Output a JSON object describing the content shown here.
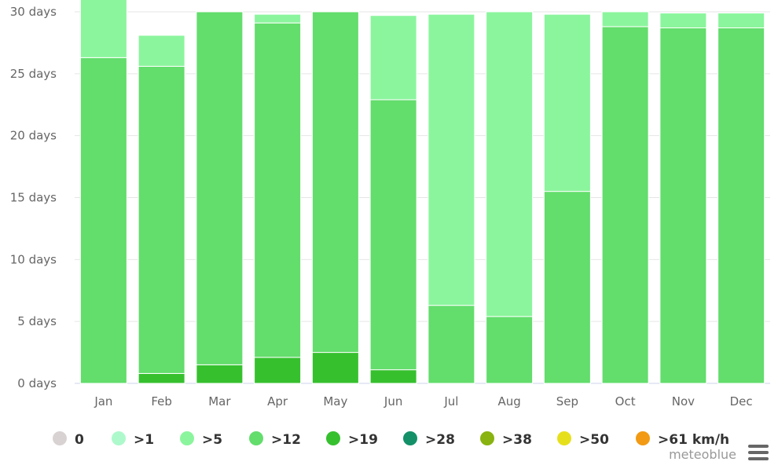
{
  "chart_data": {
    "type": "bar",
    "stacked": true,
    "categories": [
      "Jan",
      "Feb",
      "Mar",
      "Apr",
      "May",
      "Jun",
      "Jul",
      "Aug",
      "Sep",
      "Oct",
      "Nov",
      "Dec"
    ],
    "y_ticks": [
      "0 days",
      "5 days",
      "10 days",
      "15 days",
      "20 days",
      "25 days",
      "30 days"
    ],
    "ylim": [
      0,
      30
    ],
    "grid": true,
    "legend_position": "bottom",
    "series": [
      {
        "name": "0",
        "color": "#d9d2d2",
        "values": [
          0,
          0,
          0,
          0,
          0,
          0,
          0,
          0,
          0,
          0,
          0,
          0
        ]
      },
      {
        "name": ">1",
        "color": "#aef9cc",
        "values": [
          0,
          0,
          0,
          0,
          0,
          0,
          0,
          0,
          0,
          0,
          0,
          0
        ]
      },
      {
        "name": ">5",
        "color": "#8bf59d",
        "values": [
          4.7,
          2.5,
          0,
          0.7,
          0,
          6.8,
          23.5,
          24.6,
          14.3,
          1.2,
          1.2,
          1.2
        ]
      },
      {
        "name": ">12",
        "color": "#63dd6c",
        "values": [
          26.3,
          24.8,
          28.5,
          27.0,
          27.5,
          21.8,
          6.3,
          5.4,
          15.5,
          28.8,
          28.7,
          28.7
        ]
      },
      {
        "name": ">19",
        "color": "#36c02e",
        "values": [
          0,
          0.8,
          1.5,
          2.1,
          2.5,
          1.1,
          0,
          0,
          0,
          0,
          0,
          0
        ]
      },
      {
        "name": ">28",
        "color": "#139068",
        "values": [
          0,
          0,
          0,
          0,
          0,
          0,
          0,
          0,
          0,
          0,
          0,
          0
        ]
      },
      {
        "name": ">38",
        "color": "#88b310",
        "values": [
          0,
          0,
          0,
          0,
          0,
          0,
          0,
          0,
          0,
          0,
          0,
          0
        ]
      },
      {
        "name": ">50",
        "color": "#e6e01c",
        "values": [
          0,
          0,
          0,
          0,
          0,
          0,
          0,
          0,
          0,
          0,
          0,
          0
        ]
      },
      {
        "name": ">61 km/h",
        "color": "#f29a14",
        "values": [
          0,
          0,
          0,
          0,
          0,
          0,
          0,
          0,
          0,
          0,
          0,
          0
        ]
      }
    ]
  },
  "credit": "meteoblue",
  "menu_icon": "hamburger-menu-icon"
}
